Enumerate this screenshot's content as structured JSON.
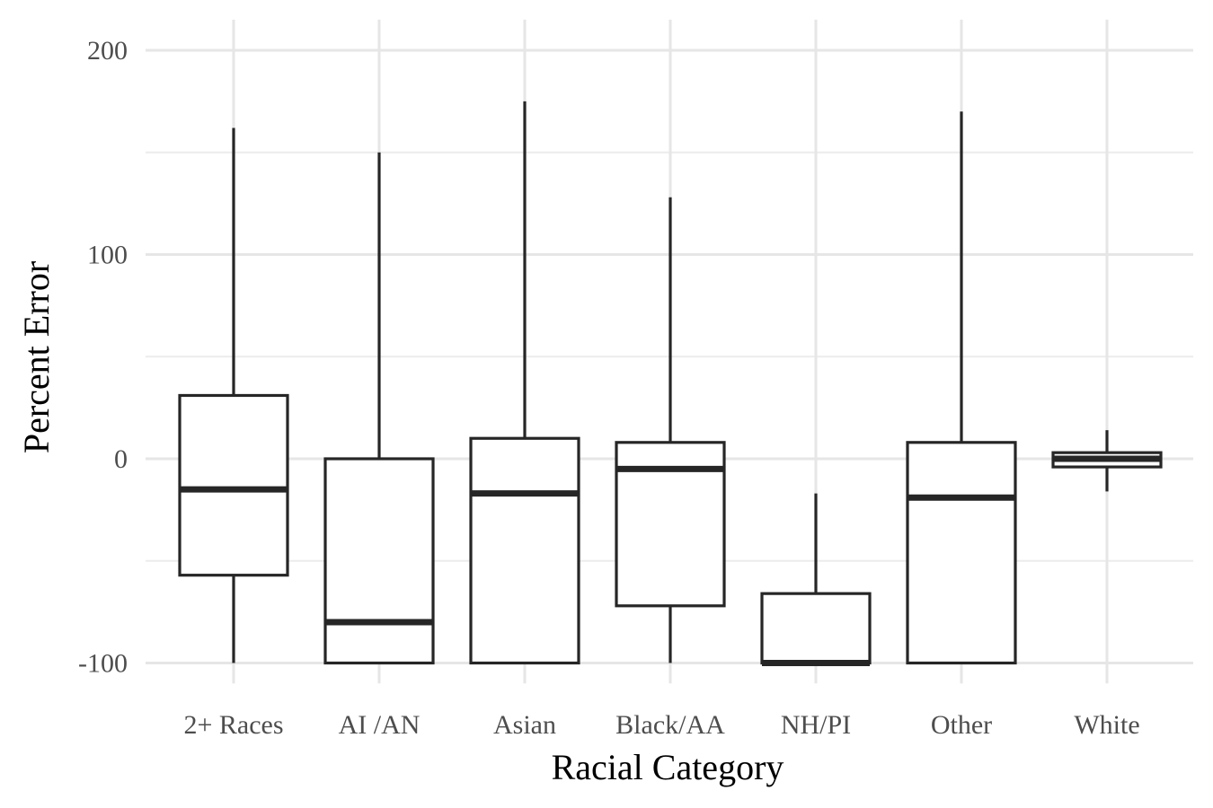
{
  "chart_data": {
    "type": "boxplot",
    "xlabel": "Racial Category",
    "ylabel": "Percent Error",
    "categories": [
      "2+ Races",
      "AI /AN",
      "Asian",
      "Black/AA",
      "NH/PI",
      "Other",
      "White"
    ],
    "ylim": [
      -110,
      215
    ],
    "y_ticks": [
      -100,
      0,
      100,
      200
    ],
    "y_tick_labels": [
      "-100",
      "0",
      "100",
      "200"
    ],
    "y_minor_ticks": [
      -50,
      50,
      150
    ],
    "grid": true,
    "legend": "none",
    "boxes": [
      {
        "category": "2+ Races",
        "whisker_low": -100,
        "q1": -57,
        "median": -15,
        "q3": 31,
        "whisker_high": 162
      },
      {
        "category": "AI /AN",
        "whisker_low": -100,
        "q1": -100,
        "median": -80,
        "q3": 0,
        "whisker_high": 150
      },
      {
        "category": "Asian",
        "whisker_low": -100,
        "q1": -100,
        "median": -17,
        "q3": 10,
        "whisker_high": 175
      },
      {
        "category": "Black/AA",
        "whisker_low": -100,
        "q1": -72,
        "median": -5,
        "q3": 8,
        "whisker_high": 128
      },
      {
        "category": "NH/PI",
        "whisker_low": -100,
        "q1": -100,
        "median": -100,
        "q3": -66,
        "whisker_high": -17
      },
      {
        "category": "Other",
        "whisker_low": -100,
        "q1": -100,
        "median": -19,
        "q3": 8,
        "whisker_high": 170
      },
      {
        "category": "White",
        "whisker_low": -16,
        "q1": -4,
        "median": 0,
        "q3": 3,
        "whisker_high": 14
      }
    ]
  },
  "colors": {
    "box_stroke": "#262626",
    "box_fill": "#ffffff",
    "grid": "#e6e6e6",
    "tick_text": "#4d4d4d",
    "title_text": "#000000"
  }
}
